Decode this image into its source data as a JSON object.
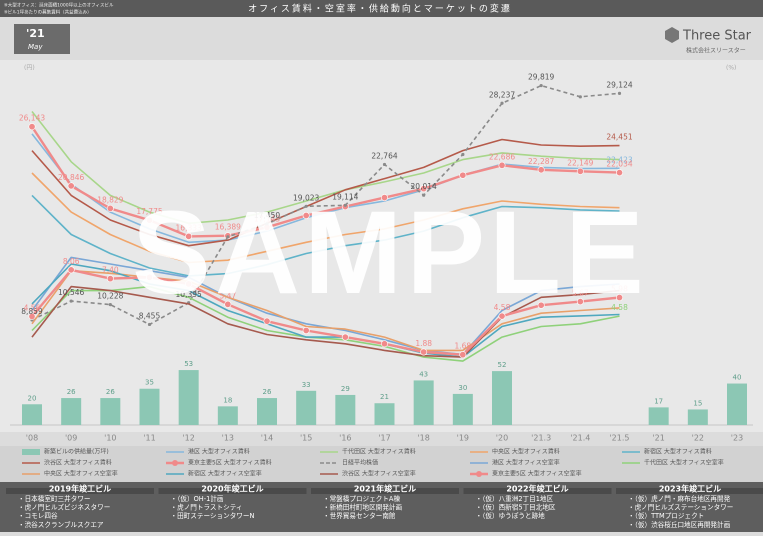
{
  "header": {
    "title": "オフィス賃料・空室率・供給動向とマーケットの変遷",
    "notes": [
      "※大型オフィス：延床面積1000坪以上のオフィスビル",
      "※ビル1坪あたりの募集賃料（共益費込み）"
    ],
    "badge_year": "'21",
    "badge_month": "May",
    "logo": "Three Star",
    "company": "株式会社スリースター"
  },
  "watermark": "SAMPLE",
  "chart_data": {
    "type": "combo",
    "y_unit": "(円)",
    "y2_unit": "(%)",
    "categories": [
      "'08",
      "'09",
      "'10",
      "'11",
      "'12",
      "'13",
      "'14",
      "'15",
      "'16",
      "'17",
      "'18",
      "'19",
      "'20",
      "'21.3",
      "'21.4",
      "'21.5",
      "'21",
      "'22",
      "'23"
    ],
    "ylim": [
      0,
      33000
    ],
    "y2lim": [
      0,
      24
    ],
    "y3lim": [
      0,
      55
    ],
    "series": [
      {
        "name": "新築ビルの供給量(万坪)",
        "type": "bar",
        "axis": "y3",
        "color": "#8cc7b4",
        "values": [
          20,
          26,
          26,
          35,
          53,
          18,
          26,
          33,
          29,
          21,
          43,
          30,
          52,
          null,
          null,
          null,
          17,
          15,
          40
        ]
      },
      {
        "name": "港区 大型オフィス賃料",
        "type": "line",
        "axis": "y",
        "color": "#86b8dd",
        "values": [
          25500,
          21000,
          18500,
          17000,
          15800,
          16000,
          16800,
          18000,
          18900,
          19500,
          20500,
          21800,
          22800,
          22500,
          22400,
          22423,
          null,
          null,
          null
        ],
        "value_labels": [
          null,
          null,
          null,
          null,
          null,
          null,
          null,
          null,
          null,
          null,
          null,
          null,
          null,
          null,
          null,
          "22,423",
          null,
          null,
          null
        ]
      },
      {
        "name": "千代田区 大型オフィス賃料",
        "type": "line",
        "axis": "y",
        "color": "#a8d68a",
        "values": [
          27500,
          23000,
          20000,
          18500,
          17500,
          17800,
          18500,
          19500,
          20500,
          21200,
          22000,
          23200,
          23800,
          23500,
          23300,
          23200,
          null,
          null,
          null
        ]
      },
      {
        "name": "中央区 大型オフィス賃料",
        "type": "line",
        "axis": "y",
        "color": "#f0a56b",
        "values": [
          22000,
          18500,
          16500,
          15000,
          14000,
          14200,
          15000,
          15800,
          16500,
          17000,
          17800,
          18800,
          19500,
          19200,
          19000,
          18900,
          null,
          null,
          null
        ]
      },
      {
        "name": "新宿区 大型オフィス賃料",
        "type": "line",
        "axis": "y",
        "color": "#5fb3c9",
        "values": [
          20000,
          16500,
          14800,
          13500,
          12800,
          13000,
          13800,
          14800,
          15500,
          16000,
          16800,
          18000,
          19000,
          18900,
          18700,
          18600,
          null,
          null,
          null
        ]
      },
      {
        "name": "渋谷区 大型オフィス賃料",
        "type": "line",
        "axis": "y",
        "color": "#b55a4a",
        "values": [
          24000,
          20000,
          17800,
          16500,
          15500,
          16000,
          17500,
          19000,
          20500,
          21500,
          22500,
          24000,
          25000,
          24500,
          24400,
          24451,
          null,
          null,
          null
        ],
        "value_labels": [
          null,
          null,
          null,
          null,
          null,
          null,
          null,
          null,
          null,
          null,
          null,
          null,
          null,
          null,
          null,
          "24,451",
          null,
          null,
          null
        ]
      },
      {
        "name": "東京主要5区 大型オフィス賃料",
        "type": "line",
        "axis": "y",
        "color": "#f08a8a",
        "markers": true,
        "values": [
          26143,
          20846,
          18829,
          17775,
          16333,
          16389,
          17143,
          18200,
          19000,
          19800,
          20600,
          21800,
          22686,
          22287,
          22149,
          22034,
          null,
          null,
          null
        ],
        "value_labels": [
          "26,143",
          "20,846",
          "18,829",
          "17,775",
          "16,333",
          "16,389",
          "17,143",
          null,
          null,
          null,
          null,
          null,
          "22,686",
          "22,287",
          "22,149",
          "22,034",
          null,
          null,
          null
        ]
      },
      {
        "name": "日経平均株価",
        "type": "line",
        "axis": "y",
        "color": "#8a8a8a",
        "dashed": true,
        "values": [
          8859,
          10546,
          10228,
          8455,
          10395,
          16291,
          17450,
          19023,
          19114,
          22764,
          20014,
          23656,
          28237,
          29819,
          28813,
          29124,
          null,
          null,
          null
        ],
        "value_labels": [
          "8,859",
          "10,546",
          "10,228",
          "8,455",
          "10,395",
          null,
          "17,450",
          "19,023",
          "19,114",
          "22,764",
          "20,014",
          null,
          "28,237",
          "29,819",
          null,
          "29,124",
          null,
          null,
          null
        ]
      },
      {
        "name": "港区 大型オフィス空室率",
        "type": "line",
        "axis": "y2",
        "color": "#7aa7d6",
        "values": [
          5.0,
          9.0,
          8.5,
          8.0,
          7.5,
          6.0,
          4.8,
          4.0,
          3.5,
          2.8,
          2.0,
          1.7,
          5.0,
          6.5,
          6.8,
          7.0,
          null,
          null,
          null
        ]
      },
      {
        "name": "千代田区 大型オフィス空室率",
        "type": "line",
        "axis": "y2",
        "color": "#8fd17a",
        "values": [
          3.5,
          6.5,
          6.5,
          6.8,
          6.0,
          4.5,
          3.5,
          3.0,
          2.8,
          2.3,
          1.5,
          1.2,
          3.0,
          3.8,
          4.0,
          4.58,
          null,
          null,
          null
        ],
        "value_labels": [
          null,
          null,
          null,
          null,
          null,
          null,
          null,
          null,
          null,
          null,
          null,
          null,
          null,
          null,
          null,
          "4.58",
          null,
          null,
          null
        ]
      },
      {
        "name": "中央区 大型オフィス空室率",
        "type": "line",
        "axis": "y2",
        "color": "#e8a06a",
        "values": [
          4.0,
          8.0,
          7.8,
          7.5,
          7.2,
          6.0,
          5.0,
          3.8,
          3.6,
          3.0,
          2.0,
          2.0,
          4.0,
          4.8,
          5.0,
          5.2,
          null,
          null,
          null
        ]
      },
      {
        "name": "新宿区 大型オフィス空室率",
        "type": "line",
        "axis": "y2",
        "color": "#4fa8bf",
        "values": [
          5.5,
          8.5,
          8.0,
          7.0,
          6.5,
          5.0,
          4.0,
          3.0,
          3.0,
          2.5,
          1.8,
          1.5,
          3.8,
          4.5,
          4.6,
          4.7,
          null,
          null,
          null
        ]
      },
      {
        "name": "渋谷区 大型オフィス空室率",
        "type": "line",
        "axis": "y2",
        "color": "#a65a4e",
        "values": [
          3.0,
          6.8,
          6.5,
          6.0,
          5.5,
          4.0,
          3.2,
          2.8,
          2.5,
          2.0,
          1.6,
          1.5,
          4.5,
          6.0,
          6.2,
          6.5,
          null,
          null,
          null
        ]
      },
      {
        "name": "東京主要5区 大型オフィス空室率",
        "type": "line",
        "axis": "y2",
        "color": "#f08a8a",
        "markers": true,
        "values": [
          4.56,
          8.06,
          7.4,
          7.5,
          7.0,
          5.47,
          4.2,
          3.5,
          3.0,
          2.5,
          1.88,
          1.68,
          4.58,
          5.4,
          5.67,
          5.98,
          null,
          null,
          null
        ],
        "value_labels": [
          "4.56",
          "8.06",
          "7.40",
          null,
          null,
          "5.47",
          null,
          null,
          null,
          null,
          "1.88",
          "1.68",
          "4.58",
          null,
          "5.67",
          "5.98",
          null,
          null,
          null
        ]
      }
    ]
  },
  "buildings": [
    {
      "title": "2019年竣工ビル",
      "items": [
        "・日本橋室町三井タワー",
        "・虎ノ門ヒルズビジネスタワー",
        "・コモレ四谷",
        "・渋谷スクランブルスクエア"
      ]
    },
    {
      "title": "2020年竣工ビル",
      "items": [
        "・（仮）OH-1計画",
        "・虎ノ門トラストシティ",
        "・田町ステーションタワーN"
      ]
    },
    {
      "title": "2021年竣工ビル",
      "items": [
        "・常盤橋プロジェクトA棟",
        "・新橋田村町地区開発計画",
        "・世界貿易センター南館"
      ]
    },
    {
      "title": "2022年竣工ビル",
      "items": [
        "・（仮）八重洲2丁目1地区",
        "・（仮）西新宿5丁目北地区",
        "・（仮）ゆうぽうと跡地"
      ]
    },
    {
      "title": "2023年竣工ビル",
      "items": [
        "・（仮）虎ノ門・麻布台地区再開発",
        "・虎ノ門ヒルズステーションタワー",
        "・（仮）TTMプロジェクト",
        "・（仮）渋谷桜丘口地区再開発計画"
      ]
    }
  ]
}
